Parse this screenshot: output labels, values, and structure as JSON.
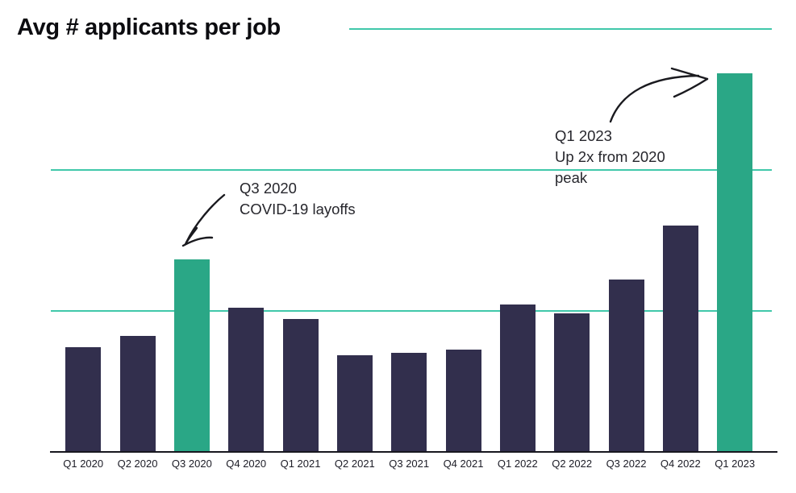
{
  "page": {
    "background": "#FFFFFF"
  },
  "colors": {
    "bar_default": "#322F4D",
    "bar_highlight": "#2AA786",
    "gridline": "#40C8AA",
    "axis_line": "#17171F",
    "axis_label": "#1C1C26",
    "annotation_text": "#26262C",
    "arrow": "#1A1A1F",
    "title_text": "#0C0C10"
  },
  "chart_data": {
    "type": "bar",
    "title": "Avg # applicants per job",
    "categories": [
      "Q1 2020",
      "Q2 2020",
      "Q3 2020",
      "Q4 2020",
      "Q1 2021",
      "Q2 2021",
      "Q3 2021",
      "Q4 2021",
      "Q1 2022",
      "Q2 2022",
      "Q3 2022",
      "Q4 2022",
      "Q1 2023"
    ],
    "values": [
      37,
      41,
      68,
      51,
      47,
      34,
      35,
      36,
      52,
      49,
      61,
      80,
      134
    ],
    "values_note": "y-axis unlabeled; values estimated from gridlines (gridline interval = 50)",
    "highlighted_indices": [
      2,
      12
    ],
    "ylim": [
      0,
      150
    ],
    "gridline_values": [
      50,
      100,
      150
    ],
    "y_axis_labels_visible": false,
    "grid": true,
    "legend_visible": false,
    "annotations": [
      {
        "lines": [
          "Q3 2020",
          "COVID-19 layoffs"
        ],
        "target_category": "Q3 2020"
      },
      {
        "lines": [
          "Q1 2023",
          "Up 2x from 2020",
          "peak"
        ],
        "target_category": "Q1 2023"
      }
    ]
  }
}
